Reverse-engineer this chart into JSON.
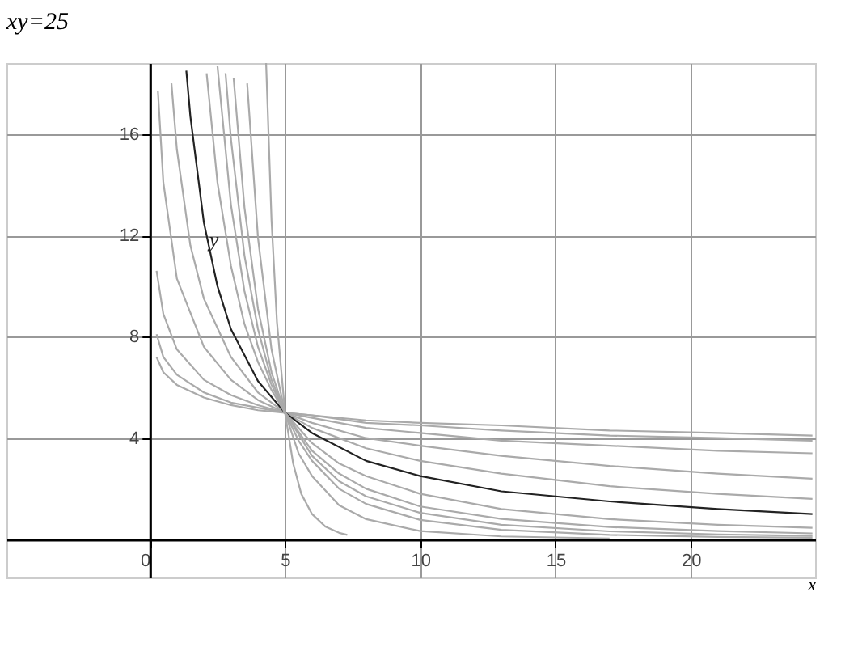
{
  "chart_data": {
    "type": "line",
    "title": "xy=25",
    "xlabel": "x",
    "xlim": [
      -5.3,
      24.6
    ],
    "ylim": [
      -1.5,
      18.8
    ],
    "xticks": [
      0,
      5,
      10,
      15,
      20
    ],
    "yticks": [
      4,
      8,
      12,
      16
    ],
    "grid": true,
    "annotations": [
      {
        "text": "y",
        "x": 2.2,
        "y": 11.8
      }
    ],
    "series": [
      {
        "color": "#aaaaaa",
        "x": [
          0.25,
          0.5,
          1,
          2,
          3,
          4,
          5,
          6,
          8,
          10,
          13,
          17,
          21,
          24.5
        ],
        "values": [
          7.2,
          6.6,
          6.1,
          5.6,
          5.3,
          5.1,
          5,
          4.9,
          4.7,
          4.6,
          4.5,
          4.3,
          4.2,
          4.1
        ]
      },
      {
        "color": "#aaaaaa",
        "x": [
          0.25,
          0.5,
          1,
          2,
          3,
          4,
          5,
          6,
          8,
          10,
          13,
          17,
          21,
          24.5
        ],
        "values": [
          8.1,
          7.2,
          6.5,
          5.8,
          5.4,
          5.2,
          5,
          4.9,
          4.6,
          4.5,
          4.3,
          4.1,
          4.0,
          3.9
        ]
      },
      {
        "color": "#aaaaaa",
        "x": [
          0.25,
          0.5,
          1,
          2,
          3,
          4,
          5,
          6,
          8,
          10,
          13,
          17,
          21,
          24.5
        ],
        "values": [
          10.6,
          8.9,
          7.5,
          6.3,
          5.7,
          5.3,
          5,
          4.8,
          4.4,
          4.2,
          3.9,
          3.7,
          3.5,
          3.4
        ]
      },
      {
        "color": "#aaaaaa",
        "x": [
          0.3,
          0.5,
          1,
          2,
          3,
          4,
          5,
          6,
          8,
          10,
          13,
          17,
          21,
          24.5
        ],
        "values": [
          17.7,
          14.1,
          10.3,
          7.6,
          6.3,
          5.5,
          5,
          4.6,
          4.0,
          3.7,
          3.3,
          2.9,
          2.6,
          2.4
        ]
      },
      {
        "color": "#aaaaaa",
        "x": [
          0.8,
          1,
          1.5,
          2,
          3,
          4,
          5,
          6,
          8,
          10,
          13,
          17,
          21,
          24.5
        ],
        "values": [
          18.0,
          15.4,
          11.6,
          9.5,
          7.2,
          5.8,
          5,
          4.4,
          3.6,
          3.1,
          2.6,
          2.1,
          1.8,
          1.6
        ]
      },
      {
        "color": "#222222",
        "x": [
          1.35,
          1.5,
          2,
          2.5,
          3,
          4,
          5,
          6,
          8,
          10,
          13,
          17,
          21,
          24.5
        ],
        "values": [
          18.5,
          16.7,
          12.5,
          10,
          8.3,
          6.25,
          5,
          4.2,
          3.1,
          2.5,
          1.9,
          1.5,
          1.2,
          1.0
        ]
      },
      {
        "color": "#aaaaaa",
        "x": [
          2.1,
          2.5,
          3,
          3.5,
          4,
          4.5,
          5,
          6,
          7,
          8,
          10,
          13,
          17,
          21,
          24.5
        ],
        "values": [
          18.4,
          14.1,
          10.8,
          8.5,
          7.0,
          5.9,
          5,
          3.8,
          3.0,
          2.5,
          1.8,
          1.2,
          0.8,
          0.58,
          0.46
        ]
      },
      {
        "color": "#aaaaaa",
        "x": [
          2.5,
          3,
          3.5,
          4,
          4.5,
          5,
          6,
          7,
          8,
          10,
          13,
          17,
          21,
          24.5
        ],
        "values": [
          18.7,
          13.2,
          9.8,
          7.6,
          6.1,
          5,
          3.5,
          2.6,
          2.0,
          1.3,
          0.81,
          0.49,
          0.33,
          0.24
        ]
      },
      {
        "color": "#aaaaaa",
        "x": [
          2.8,
          3,
          3.5,
          4,
          4.5,
          5,
          6,
          7,
          8,
          10,
          13,
          17,
          21,
          24.5
        ],
        "values": [
          18.4,
          15.8,
          11.2,
          8.3,
          6.3,
          5,
          3.3,
          2.3,
          1.7,
          1.05,
          0.58,
          0.32,
          0.2,
          0.14
        ]
      },
      {
        "color": "#aaaaaa",
        "x": [
          3.1,
          3.5,
          4,
          4.5,
          5,
          5.5,
          6,
          7,
          8,
          10,
          13,
          17,
          21,
          24.5
        ],
        "values": [
          18.2,
          13.1,
          9.1,
          6.6,
          5,
          3.9,
          3.1,
          2.0,
          1.4,
          0.77,
          0.38,
          0.18,
          0.1,
          0.07
        ]
      },
      {
        "color": "#aaaaaa",
        "x": [
          3.6,
          4,
          4.5,
          5,
          5.5,
          6,
          7,
          8,
          10,
          13,
          17
        ],
        "values": [
          18.0,
          11.9,
          7.5,
          5,
          3.4,
          2.5,
          1.35,
          0.8,
          0.33,
          0.12,
          0.04
        ]
      },
      {
        "color": "#aaaaaa",
        "x": [
          4.3,
          4.5,
          4.7,
          5,
          5.3,
          5.6,
          6,
          6.5,
          7,
          7.3
        ],
        "values": [
          18.8,
          12.6,
          8.6,
          5,
          3.0,
          1.8,
          1.0,
          0.5,
          0.26,
          0.18
        ]
      }
    ]
  }
}
